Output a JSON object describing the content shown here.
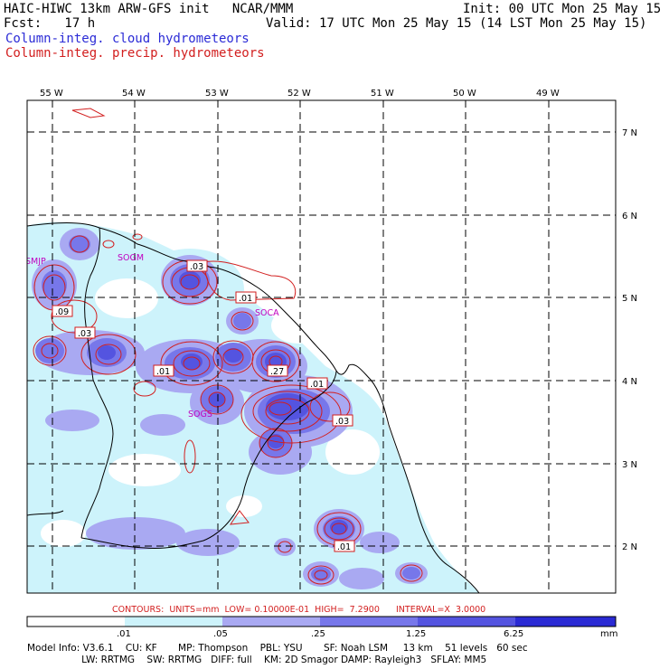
{
  "header": {
    "line1_left": "HAIC-HIWC 13km ARW-GFS init   NCAR/MMM",
    "line1_right": "Init: 00 UTC Mon 25 May 15",
    "line2_left": "Fcst:   17 h",
    "line2_right": "Valid: 17 UTC Mon 25 May 15 (14 LST Mon 25 May 15)",
    "field_cloud": "Column-integ. cloud hydrometeors",
    "field_precip": "Column-integ. precip. hydrometeors"
  },
  "map": {
    "lon_labels": [
      "55 W",
      "54 W",
      "53 W",
      "52 W",
      "51 W",
      "50 W",
      "49 W"
    ],
    "lat_labels": [
      "7 N",
      "6 N",
      "5 N",
      "4 N",
      "3 N",
      "2 N"
    ],
    "stations": [
      "SMJP",
      "SOGM",
      "SOCA",
      "SOGS"
    ],
    "contour_labels": [
      ".03",
      ".01",
      ".09",
      ".03",
      ".01",
      ".27",
      ".01",
      ".03",
      ".01"
    ],
    "colors": {
      "level1": "#cdf3fb",
      "level2": "#a9a9f2",
      "level3": "#7777ea",
      "level4": "#5454e0",
      "level5": "#2a2ad4",
      "contour": "#d21e1e",
      "coast": "#000000"
    }
  },
  "contours_info": "CONTOURS:  UNITS=mm  LOW= 0.10000E-01  HIGH=  7.2900      INTERVAL=X  3.0000",
  "colorbar": {
    "ticks": [
      ".01",
      ".05",
      ".25",
      "1.25",
      "6.25"
    ],
    "unit": "mm",
    "colors": [
      "#ffffff",
      "#cdf3fb",
      "#a9a9f2",
      "#7777ea",
      "#5454e0",
      "#2a2ad4",
      "#0d0de0"
    ]
  },
  "footer": {
    "line1": "Model Info: V3.6.1    CU: KF       MP: Thompson    PBL: YSU       SF: Noah LSM     13 km    51 levels   60 sec",
    "line2": "                  LW: RRTMG    SW: RRTMG   DIFF: full    KM: 2D Smagor DAMP: Rayleigh3   SFLAY: MM5"
  }
}
